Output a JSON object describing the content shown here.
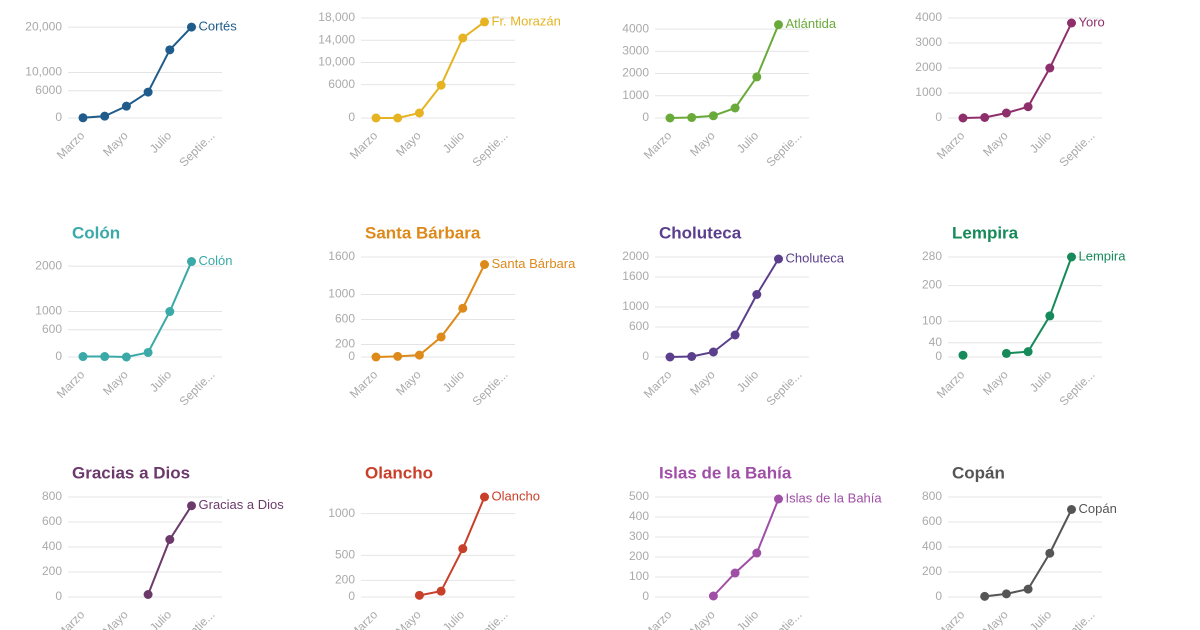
{
  "chart_data": [
    {
      "type": "line",
      "title": "Cortés",
      "categories": [
        "Marzo",
        null,
        "Mayo",
        null,
        "Julio",
        null,
        "Septie..."
      ],
      "series": [
        {
          "name": "Cortés",
          "color": "#1f5c8b",
          "values": [
            50,
            400,
            2600,
            5700,
            15000,
            20000,
            null
          ]
        }
      ],
      "ylim": [
        0,
        22000
      ],
      "yticks": [
        0,
        6000,
        {
          "value": 10000,
          "label": "10,000"
        },
        {
          "value": 20000,
          "label": "20,000"
        }
      ]
    },
    {
      "type": "line",
      "title": "Fr. Morazán",
      "categories": [
        "Marzo",
        null,
        "Mayo",
        null,
        "Julio",
        null,
        "Septie..."
      ],
      "series": [
        {
          "name": "Fr. Morazán",
          "color": "#e6b422",
          "values": [
            0,
            0,
            900,
            5900,
            14400,
            17300,
            null
          ]
        }
      ],
      "ylim": [
        0,
        18000
      ],
      "yticks": [
        0,
        6000,
        {
          "value": 10000,
          "label": "10,000"
        },
        {
          "value": 14000,
          "label": "14,000"
        },
        {
          "value": 18000,
          "label": "18,000"
        }
      ]
    },
    {
      "type": "line",
      "title": "Atlántida",
      "categories": [
        "Marzo",
        null,
        "Mayo",
        null,
        "Julio",
        null,
        "Septie..."
      ],
      "series": [
        {
          "name": "Atlántida",
          "color": "#6aaa3a",
          "values": [
            0,
            20,
            100,
            450,
            1850,
            4200,
            null
          ]
        }
      ],
      "ylim": [
        0,
        4500
      ],
      "yticks": [
        0,
        1000,
        2000,
        3000,
        4000
      ]
    },
    {
      "type": "line",
      "title": "Yoro",
      "categories": [
        "Marzo",
        null,
        "Mayo",
        null,
        "Julio",
        null,
        "Septie..."
      ],
      "series": [
        {
          "name": "Yoro",
          "color": "#8e2f6b",
          "values": [
            0,
            20,
            200,
            450,
            2000,
            3800,
            null
          ]
        }
      ],
      "ylim": [
        0,
        4000
      ],
      "yticks": [
        0,
        1000,
        2000,
        3000,
        4000
      ]
    },
    {
      "type": "line",
      "title": "Colón",
      "categories": [
        "Marzo",
        null,
        "Mayo",
        null,
        "Julio",
        null,
        "Septie..."
      ],
      "series": [
        {
          "name": "Colón",
          "color": "#3aa9a8",
          "values": [
            10,
            10,
            0,
            100,
            1000,
            2100,
            null
          ]
        }
      ],
      "ylim": [
        0,
        2200
      ],
      "yticks": [
        0,
        600,
        1000,
        2000
      ]
    },
    {
      "type": "line",
      "title": "Santa Bárbara",
      "categories": [
        "Marzo",
        null,
        "Mayo",
        null,
        "Julio",
        null,
        "Septie..."
      ],
      "series": [
        {
          "name": "Santa Bárbara",
          "color": "#dd8a1b",
          "values": [
            0,
            10,
            30,
            320,
            780,
            1480,
            null
          ]
        }
      ],
      "ylim": [
        0,
        1600
      ],
      "yticks": [
        0,
        200,
        600,
        1000,
        1600
      ]
    },
    {
      "type": "line",
      "title": "Choluteca",
      "categories": [
        "Marzo",
        null,
        "Mayo",
        null,
        "Julio",
        null,
        "Septie..."
      ],
      "series": [
        {
          "name": "Choluteca",
          "color": "#5b3f8c",
          "values": [
            0,
            10,
            100,
            440,
            1250,
            1960,
            null
          ]
        }
      ],
      "ylim": [
        0,
        2000
      ],
      "yticks": [
        0,
        600,
        1000,
        1600,
        2000
      ]
    },
    {
      "type": "line",
      "title": "Lempira",
      "categories": [
        "Marzo",
        null,
        "Mayo",
        null,
        "Julio",
        null,
        "Septie..."
      ],
      "series": [
        {
          "name": "Lempira",
          "color": "#168a5a",
          "values": [
            5,
            null,
            10,
            15,
            115,
            280,
            null
          ]
        }
      ],
      "ylim": [
        0,
        280
      ],
      "yticks": [
        0,
        40,
        100,
        200,
        280
      ]
    },
    {
      "type": "line",
      "title": "Gracias a Dios",
      "categories": [
        "Marzo",
        null,
        "Mayo",
        null,
        "Julio",
        null,
        "Septie..."
      ],
      "series": [
        {
          "name": "Gracias a Dios",
          "color": "#6b3a6b",
          "values": [
            null,
            null,
            null,
            20,
            460,
            730,
            null
          ]
        }
      ],
      "ylim": [
        0,
        800
      ],
      "yticks": [
        0,
        200,
        400,
        600,
        800
      ]
    },
    {
      "type": "line",
      "title": "Olancho",
      "categories": [
        "Marzo",
        null,
        "Mayo",
        null,
        "Julio",
        null,
        "Septie..."
      ],
      "series": [
        {
          "name": "Olancho",
          "color": "#c9402a",
          "values": [
            null,
            null,
            20,
            70,
            580,
            1200,
            null
          ]
        }
      ],
      "ylim": [
        0,
        1200
      ],
      "yticks": [
        0,
        200,
        500,
        1000
      ]
    },
    {
      "type": "line",
      "title": "Islas de la Bahía",
      "categories": [
        "Marzo",
        null,
        "Mayo",
        null,
        "Julio",
        null,
        "Septie..."
      ],
      "series": [
        {
          "name": "Islas de la Bahía",
          "color": "#a04fa7",
          "values": [
            null,
            null,
            5,
            120,
            220,
            490,
            null
          ]
        }
      ],
      "ylim": [
        0,
        500
      ],
      "yticks": [
        0,
        100,
        200,
        300,
        400,
        500
      ]
    },
    {
      "type": "line",
      "title": "Copán",
      "categories": [
        "Marzo",
        null,
        "Mayo",
        null,
        "Julio",
        null,
        "Septie..."
      ],
      "series": [
        {
          "name": "Copán",
          "color": "#555555",
          "values": [
            null,
            5,
            25,
            63,
            350,
            700,
            null
          ]
        }
      ],
      "ylim": [
        0,
        800
      ],
      "yticks": [
        0,
        200,
        400,
        600,
        800
      ]
    }
  ]
}
